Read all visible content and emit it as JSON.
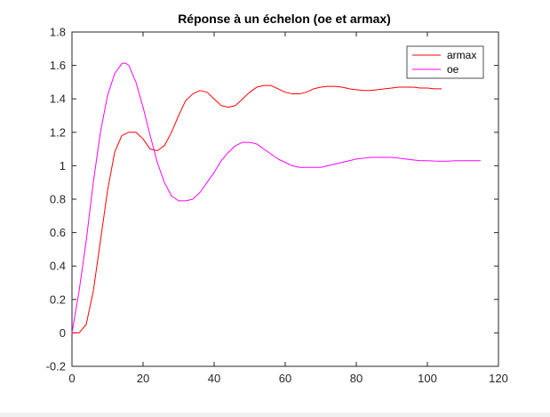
{
  "chart_data": {
    "type": "line",
    "title": "Réponse à un échelon (oe et armax)",
    "xlabel": "",
    "ylabel": "",
    "xlim": [
      0,
      120
    ],
    "ylim": [
      -0.2,
      1.8
    ],
    "xticks": [
      0,
      20,
      40,
      60,
      80,
      100,
      120
    ],
    "xtick_labels": [
      "0",
      "20",
      "40",
      "60",
      "80",
      "100",
      "120"
    ],
    "yticks": [
      -0.2,
      0,
      0.2,
      0.4,
      0.6,
      0.8,
      1,
      1.2,
      1.4,
      1.6,
      1.8
    ],
    "ytick_labels": [
      "-0.2",
      "0",
      "0.2",
      "0.4",
      "0.6",
      "0.8",
      "1",
      "1.2",
      "1.4",
      "1.6",
      "1.8"
    ],
    "grid": false,
    "legend_position": "top-right",
    "series": [
      {
        "name": "armax",
        "color": "#ff0000",
        "x": [
          0,
          2,
          4,
          6,
          8,
          10,
          12,
          14,
          16,
          18,
          20,
          22,
          24,
          26,
          28,
          30,
          32,
          34,
          36,
          38,
          40,
          42,
          44,
          46,
          48,
          50,
          52,
          54,
          56,
          58,
          60,
          62,
          64,
          66,
          68,
          70,
          72,
          74,
          76,
          78,
          80,
          82,
          84,
          86,
          88,
          90,
          92,
          94,
          96,
          98,
          100,
          102,
          104
        ],
        "y": [
          0,
          0,
          0.05,
          0.25,
          0.55,
          0.85,
          1.08,
          1.18,
          1.2,
          1.2,
          1.16,
          1.1,
          1.09,
          1.12,
          1.2,
          1.3,
          1.39,
          1.43,
          1.45,
          1.44,
          1.4,
          1.36,
          1.35,
          1.36,
          1.4,
          1.44,
          1.47,
          1.48,
          1.48,
          1.46,
          1.44,
          1.43,
          1.43,
          1.44,
          1.46,
          1.47,
          1.475,
          1.475,
          1.47,
          1.46,
          1.455,
          1.45,
          1.45,
          1.455,
          1.46,
          1.465,
          1.47,
          1.47,
          1.47,
          1.465,
          1.465,
          1.46,
          1.46
        ]
      },
      {
        "name": "oe",
        "color": "#ff00ff",
        "x": [
          0,
          2,
          4,
          6,
          8,
          10,
          12,
          14,
          15,
          16,
          18,
          20,
          22,
          24,
          26,
          28,
          30,
          32,
          34,
          36,
          38,
          40,
          42,
          44,
          46,
          48,
          50,
          52,
          54,
          56,
          58,
          60,
          62,
          64,
          66,
          68,
          70,
          72,
          74,
          76,
          78,
          80,
          82,
          84,
          86,
          88,
          90,
          92,
          94,
          96,
          98,
          100,
          102,
          104,
          106,
          108,
          110,
          112,
          115
        ],
        "y": [
          0,
          0.25,
          0.55,
          0.9,
          1.2,
          1.42,
          1.55,
          1.61,
          1.615,
          1.6,
          1.5,
          1.35,
          1.18,
          1.02,
          0.9,
          0.82,
          0.79,
          0.79,
          0.8,
          0.84,
          0.9,
          0.96,
          1.03,
          1.08,
          1.12,
          1.14,
          1.14,
          1.13,
          1.1,
          1.07,
          1.04,
          1.02,
          1.0,
          0.99,
          0.99,
          0.99,
          0.99,
          1.0,
          1.01,
          1.02,
          1.03,
          1.04,
          1.045,
          1.05,
          1.05,
          1.05,
          1.05,
          1.045,
          1.04,
          1.035,
          1.03,
          1.03,
          1.028,
          1.027,
          1.028,
          1.03,
          1.03,
          1.03,
          1.03
        ]
      }
    ]
  }
}
